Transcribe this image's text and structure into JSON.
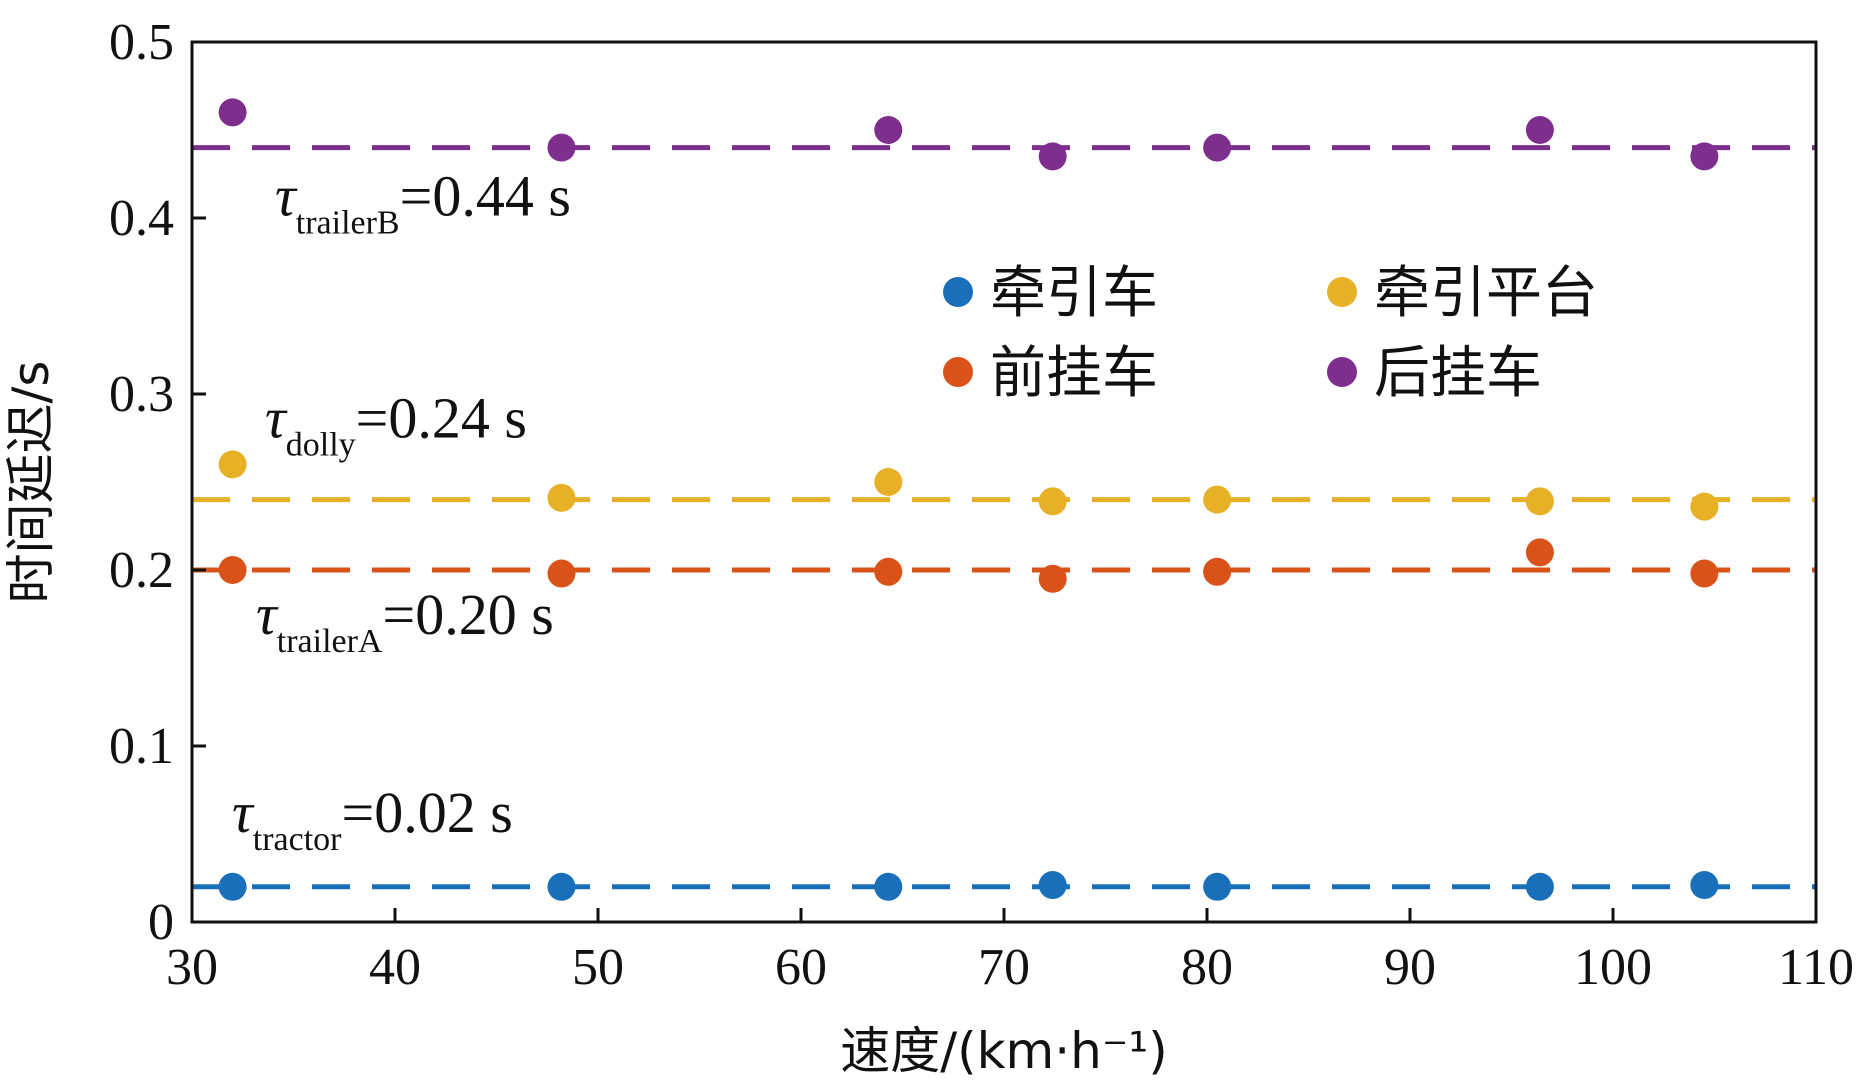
{
  "chart_data": {
    "type": "scatter",
    "xlabel": "速度/(km·h⁻¹)",
    "ylabel": "时间延迟/s",
    "xlim": [
      30,
      110
    ],
    "ylim": [
      0,
      0.5
    ],
    "x_ticks": [
      "30",
      "40",
      "50",
      "60",
      "70",
      "80",
      "90",
      "100",
      "110"
    ],
    "y_ticks": [
      "0",
      "0.1",
      "0.2",
      "0.3",
      "0.4",
      "0.5"
    ],
    "grid": false,
    "legend_position": "center-right",
    "x": [
      32,
      48.2,
      64.3,
      72.4,
      80.5,
      96.4,
      104.5
    ],
    "series": [
      {
        "name": "牵引车",
        "color": "#1a6fba",
        "values": [
          0.02,
          0.02,
          0.02,
          0.021,
          0.02,
          0.02,
          0.021
        ]
      },
      {
        "name": "牵引平台",
        "color": "#e8b027",
        "values": [
          0.26,
          0.241,
          0.25,
          0.239,
          0.24,
          0.239,
          0.236
        ]
      },
      {
        "name": "前挂车",
        "color": "#d95319",
        "values": [
          0.2,
          0.198,
          0.199,
          0.195,
          0.199,
          0.21,
          0.198
        ]
      },
      {
        "name": "后挂车",
        "color": "#7e2f8e",
        "values": [
          0.46,
          0.44,
          0.45,
          0.435,
          0.44,
          0.45,
          0.435
        ]
      }
    ],
    "reference_lines": [
      {
        "y": 0.02,
        "color": "#1a6fba",
        "tau": "τ",
        "sub": "tractor",
        "value": "=0.02 s"
      },
      {
        "y": 0.24,
        "color": "#e8b027",
        "tau": "τ",
        "sub": "dolly",
        "value": "=0.24 s"
      },
      {
        "y": 0.2,
        "color": "#d95319",
        "tau": "τ",
        "sub": "trailerA",
        "value": "=0.20 s"
      },
      {
        "y": 0.44,
        "color": "#7e2f8e",
        "tau": "τ",
        "sub": "trailerB",
        "value": "=0.44 s"
      }
    ]
  }
}
